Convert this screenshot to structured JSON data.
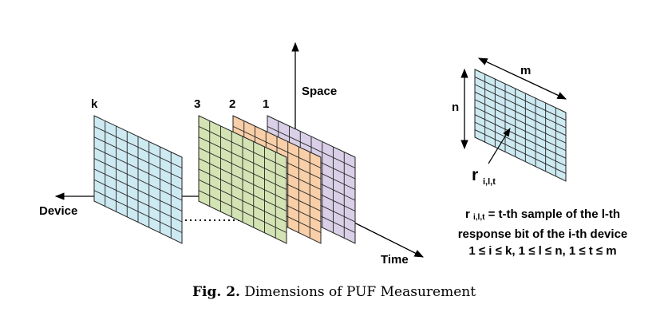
{
  "axes": {
    "space_label": "Space",
    "time_label": "Time",
    "device_label": "Device"
  },
  "layers": {
    "k_label": "k",
    "layer3_label": "3",
    "layer2_label": "2",
    "layer1_label": "1"
  },
  "detail": {
    "m_label": "m",
    "n_label": "n",
    "r_main": "r",
    "r_sub": "i,l,t"
  },
  "legend": {
    "line1_var": "r",
    "line1_sub": "i,l,t",
    "line1_rest": " = t-th sample of the l-th",
    "line2": "response bit of the i-th device",
    "line3": "1 ≤ i ≤ k, 1 ≤ l ≤ n, 1 ≤ t ≤ m"
  },
  "caption": {
    "prefix": "Fig. 2.",
    "text": " Dimensions of PUF Measurement"
  },
  "colors": {
    "layer_k": "#cde9f1",
    "layer_3": "#d4e3b3",
    "layer_2": "#f8cfa8",
    "layer_1": "#d9cfe6",
    "detail": "#cde9f1",
    "grid_line": "#222222"
  }
}
